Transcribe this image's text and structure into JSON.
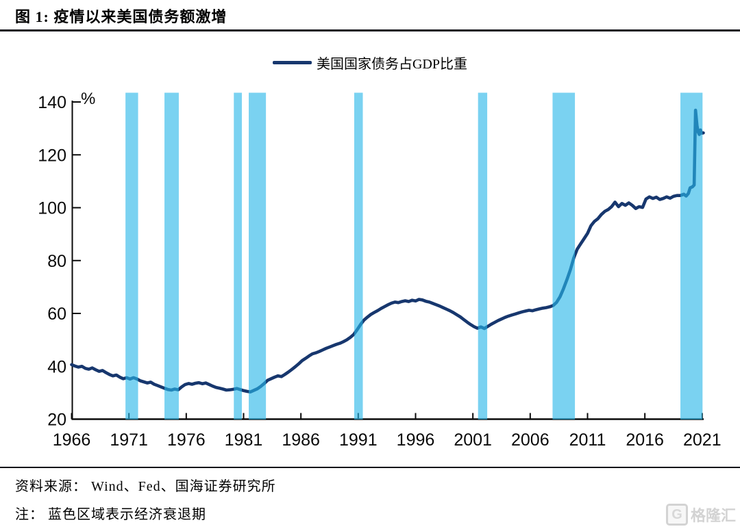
{
  "header": {
    "title": "图 1:  疫情以来美国债务额激增"
  },
  "legend": {
    "label": "美国国家债务占GDP比重"
  },
  "footer": {
    "source_line": "资料来源：  Wind、Fed、国海证券研究所",
    "note_line": "注：  蓝色区域表示经济衰退期"
  },
  "watermark": {
    "icon": "G",
    "text": "格隆汇"
  },
  "chart_data": {
    "type": "line",
    "title": "疫情以来美国债务额激增",
    "unit_label": "%",
    "xlabel": "",
    "ylabel": "%",
    "xlim": [
      1966,
      2021.15
    ],
    "ylim": [
      20,
      140
    ],
    "grid": false,
    "legend_position": "top-center",
    "x_ticks": [
      1966,
      1971,
      1976,
      1981,
      1986,
      1991,
      1996,
      2001,
      2006,
      2011,
      2016,
      2021
    ],
    "y_ticks": [
      20,
      40,
      60,
      80,
      100,
      120,
      140
    ],
    "colors": {
      "line": "#17376E",
      "recession_band": "#29B6E8",
      "recession_band_opacity": 0.62,
      "axis": "#0a0a0a"
    },
    "recession_bands": [
      {
        "start": 1970.7,
        "end": 1971.8
      },
      {
        "start": 1974.1,
        "end": 1975.35
      },
      {
        "start": 1980.15,
        "end": 1980.85
      },
      {
        "start": 1981.45,
        "end": 1982.95
      },
      {
        "start": 1990.65,
        "end": 1991.4
      },
      {
        "start": 2001.45,
        "end": 2002.25
      },
      {
        "start": 2007.95,
        "end": 2009.9
      },
      {
        "start": 2019.1,
        "end": 2021.03
      }
    ],
    "series": [
      {
        "name": "美国国家债务占GDP比重",
        "points": [
          [
            1966,
            40.6
          ],
          [
            1966.3,
            40.1
          ],
          [
            1966.6,
            39.7
          ],
          [
            1966.9,
            40
          ],
          [
            1967.2,
            39.2
          ],
          [
            1967.5,
            38.9
          ],
          [
            1967.8,
            39.4
          ],
          [
            1968.1,
            38.7
          ],
          [
            1968.4,
            38.1
          ],
          [
            1968.7,
            38.4
          ],
          [
            1969,
            37.6
          ],
          [
            1969.3,
            36.9
          ],
          [
            1969.6,
            36.4
          ],
          [
            1969.9,
            36.7
          ],
          [
            1970.2,
            35.9
          ],
          [
            1970.5,
            35.3
          ],
          [
            1970.8,
            35.7
          ],
          [
            1971.1,
            35.2
          ],
          [
            1971.4,
            35.7
          ],
          [
            1971.7,
            35.2
          ],
          [
            1972,
            34.5
          ],
          [
            1972.3,
            34.1
          ],
          [
            1972.6,
            33.7
          ],
          [
            1972.9,
            34
          ],
          [
            1973.2,
            33.2
          ],
          [
            1973.5,
            32.7
          ],
          [
            1973.8,
            32.2
          ],
          [
            1974.1,
            31.7
          ],
          [
            1974.4,
            31.2
          ],
          [
            1974.7,
            31
          ],
          [
            1975,
            31.4
          ],
          [
            1975.3,
            31.1
          ],
          [
            1975.6,
            32.2
          ],
          [
            1975.9,
            33.1
          ],
          [
            1976.2,
            33.5
          ],
          [
            1976.5,
            33.2
          ],
          [
            1976.8,
            33.6
          ],
          [
            1977.1,
            33.8
          ],
          [
            1977.4,
            33.4
          ],
          [
            1977.7,
            33.7
          ],
          [
            1978,
            33.1
          ],
          [
            1978.3,
            32.5
          ],
          [
            1978.6,
            32
          ],
          [
            1978.9,
            31.7
          ],
          [
            1979.2,
            31.4
          ],
          [
            1979.5,
            31
          ],
          [
            1979.8,
            31.1
          ],
          [
            1980.1,
            31.3
          ],
          [
            1980.4,
            31.6
          ],
          [
            1980.7,
            31.2
          ],
          [
            1981,
            30.8
          ],
          [
            1981.3,
            30.5
          ],
          [
            1981.6,
            30.3
          ],
          [
            1981.9,
            30.9
          ],
          [
            1982.2,
            31.5
          ],
          [
            1982.5,
            32.4
          ],
          [
            1982.8,
            33.5
          ],
          [
            1983.1,
            34.7
          ],
          [
            1983.4,
            35.3
          ],
          [
            1983.7,
            35.9
          ],
          [
            1984,
            36.4
          ],
          [
            1984.3,
            36.1
          ],
          [
            1984.6,
            36.9
          ],
          [
            1984.9,
            37.8
          ],
          [
            1985.2,
            38.8
          ],
          [
            1985.5,
            39.8
          ],
          [
            1985.8,
            40.9
          ],
          [
            1986.1,
            42.1
          ],
          [
            1986.4,
            43
          ],
          [
            1986.7,
            43.9
          ],
          [
            1987,
            44.7
          ],
          [
            1987.3,
            45.1
          ],
          [
            1987.6,
            45.6
          ],
          [
            1987.9,
            46.2
          ],
          [
            1988.2,
            46.8
          ],
          [
            1988.5,
            47.3
          ],
          [
            1988.8,
            47.8
          ],
          [
            1989.1,
            48.3
          ],
          [
            1989.4,
            48.7
          ],
          [
            1989.7,
            49.3
          ],
          [
            1990,
            50
          ],
          [
            1990.3,
            50.9
          ],
          [
            1990.6,
            52
          ],
          [
            1990.9,
            53.8
          ],
          [
            1991.2,
            55.8
          ],
          [
            1991.5,
            57.5
          ],
          [
            1991.8,
            58.6
          ],
          [
            1992.1,
            59.6
          ],
          [
            1992.4,
            60.4
          ],
          [
            1992.7,
            61.1
          ],
          [
            1993,
            61.9
          ],
          [
            1993.3,
            62.6
          ],
          [
            1993.6,
            63.3
          ],
          [
            1993.9,
            63.9
          ],
          [
            1994.2,
            64.3
          ],
          [
            1994.5,
            64.1
          ],
          [
            1994.8,
            64.5
          ],
          [
            1995.1,
            64.8
          ],
          [
            1995.4,
            64.5
          ],
          [
            1995.7,
            65
          ],
          [
            1996,
            64.7
          ],
          [
            1996.3,
            65.3
          ],
          [
            1996.6,
            65.1
          ],
          [
            1996.9,
            64.6
          ],
          [
            1997.2,
            64.3
          ],
          [
            1997.5,
            63.8
          ],
          [
            1997.8,
            63.3
          ],
          [
            1998.1,
            62.8
          ],
          [
            1998.4,
            62.2
          ],
          [
            1998.7,
            61.6
          ],
          [
            1999,
            61
          ],
          [
            1999.3,
            60.3
          ],
          [
            1999.6,
            59.5
          ],
          [
            1999.9,
            58.7
          ],
          [
            2000.2,
            57.7
          ],
          [
            2000.5,
            56.7
          ],
          [
            2000.8,
            55.8
          ],
          [
            2001.1,
            55
          ],
          [
            2001.4,
            54.4
          ],
          [
            2001.7,
            54.9
          ],
          [
            2002,
            54.3
          ],
          [
            2002.3,
            55.1
          ],
          [
            2002.6,
            55.9
          ],
          [
            2002.9,
            56.6
          ],
          [
            2003.2,
            57.3
          ],
          [
            2003.5,
            57.9
          ],
          [
            2003.8,
            58.5
          ],
          [
            2004.1,
            59
          ],
          [
            2004.4,
            59.4
          ],
          [
            2004.7,
            59.8
          ],
          [
            2005,
            60.2
          ],
          [
            2005.3,
            60.6
          ],
          [
            2005.6,
            60.9
          ],
          [
            2005.9,
            61.2
          ],
          [
            2006.2,
            61
          ],
          [
            2006.5,
            61.4
          ],
          [
            2006.8,
            61.7
          ],
          [
            2007.1,
            62
          ],
          [
            2007.4,
            62.2
          ],
          [
            2007.7,
            62.5
          ],
          [
            2008,
            63
          ],
          [
            2008.3,
            64.2
          ],
          [
            2008.6,
            66.3
          ],
          [
            2008.9,
            69.3
          ],
          [
            2009.2,
            72.8
          ],
          [
            2009.5,
            76.5
          ],
          [
            2009.8,
            81
          ],
          [
            2010.1,
            84.3
          ],
          [
            2010.4,
            86.3
          ],
          [
            2010.7,
            88.3
          ],
          [
            2011,
            90.3
          ],
          [
            2011.3,
            93.2
          ],
          [
            2011.6,
            94.8
          ],
          [
            2011.9,
            95.8
          ],
          [
            2012.2,
            97.4
          ],
          [
            2012.5,
            98.6
          ],
          [
            2012.8,
            99.3
          ],
          [
            2013.1,
            100.4
          ],
          [
            2013.4,
            102.1
          ],
          [
            2013.7,
            100.4
          ],
          [
            2014,
            101.6
          ],
          [
            2014.3,
            100.9
          ],
          [
            2014.6,
            101.8
          ],
          [
            2014.9,
            100.9
          ],
          [
            2015.2,
            99.7
          ],
          [
            2015.5,
            100.4
          ],
          [
            2015.8,
            100.1
          ],
          [
            2016.1,
            103.3
          ],
          [
            2016.4,
            104.1
          ],
          [
            2016.7,
            103.5
          ],
          [
            2017,
            104
          ],
          [
            2017.3,
            103.1
          ],
          [
            2017.6,
            103.5
          ],
          [
            2017.9,
            104.1
          ],
          [
            2018.2,
            103.6
          ],
          [
            2018.5,
            104.3
          ],
          [
            2018.8,
            104.6
          ],
          [
            2019.1,
            104.6
          ],
          [
            2019.4,
            105.1
          ],
          [
            2019.6,
            104.4
          ],
          [
            2019.8,
            105.4
          ],
          [
            2019.95,
            107.5
          ],
          [
            2020.15,
            107.9
          ],
          [
            2020.3,
            108.6
          ],
          [
            2020.42,
            136.9
          ],
          [
            2020.55,
            131
          ],
          [
            2020.65,
            128.6
          ],
          [
            2020.75,
            127.7
          ],
          [
            2020.85,
            129.4
          ],
          [
            2020.95,
            128.2
          ],
          [
            2021.1,
            128.3
          ]
        ]
      }
    ]
  }
}
